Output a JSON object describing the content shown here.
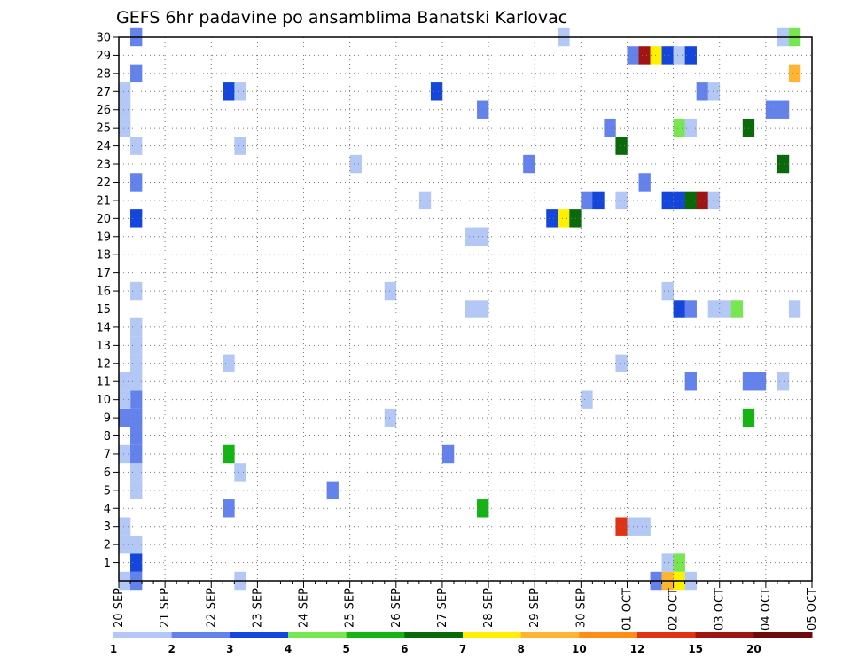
{
  "chart_data": {
    "type": "heatmap",
    "title": "GEFS 6hr padavine po ansamblima Banatski Karlovac",
    "xlabel": "",
    "ylabel": "",
    "x_tick_labels": [
      "20 SEP",
      "21 SEP",
      "22 SEP",
      "23 SEP",
      "24 SEP",
      "25 SEP",
      "26 SEP",
      "27 SEP",
      "28 SEP",
      "29 SEP",
      "30 SEP",
      "01 OCT",
      "02 OCT",
      "03 OCT",
      "04 OCT",
      "05 OCT"
    ],
    "y_tick_labels": [
      "1",
      "2",
      "3",
      "4",
      "5",
      "6",
      "7",
      "8",
      "9",
      "10",
      "11",
      "12",
      "13",
      "14",
      "15",
      "16",
      "17",
      "18",
      "19",
      "20",
      "21",
      "22",
      "23",
      "24",
      "25",
      "26",
      "27",
      "28",
      "29",
      "30"
    ],
    "x_unit": "6-hour step from 20 SEP",
    "xlim": [
      0,
      60
    ],
    "ylim": [
      0,
      30
    ],
    "grid": true,
    "colorbar": {
      "labels": [
        "1",
        "2",
        "3",
        "4",
        "5",
        "6",
        "7",
        "8",
        "10",
        "12",
        "15",
        "20"
      ],
      "colors": [
        "#b4c8f5",
        "#6482ec",
        "#1446dc",
        "#78e650",
        "#14b414",
        "#0a690a",
        "#fff000",
        "#ffb432",
        "#ff8c14",
        "#e13214",
        "#a01414",
        "#6e0a0a"
      ]
    },
    "cells": [
      {
        "x": 0,
        "y": 0,
        "v": 1.5
      },
      {
        "x": 1,
        "y": 0,
        "v": 2.5
      },
      {
        "x": 1,
        "y": 1,
        "v": 3.5
      },
      {
        "x": 1,
        "y": 2,
        "v": 1.5
      },
      {
        "x": 0,
        "y": 2,
        "v": 1.5
      },
      {
        "x": 0,
        "y": 3,
        "v": 1.5
      },
      {
        "x": 0,
        "y": 7,
        "v": 1.5
      },
      {
        "x": 1,
        "y": 5,
        "v": 1.5
      },
      {
        "x": 1,
        "y": 6,
        "v": 1.5
      },
      {
        "x": 1,
        "y": 7,
        "v": 2.5
      },
      {
        "x": 1,
        "y": 8,
        "v": 2.5
      },
      {
        "x": 1,
        "y": 9,
        "v": 2.5
      },
      {
        "x": 0,
        "y": 9,
        "v": 2.5
      },
      {
        "x": 1,
        "y": 10,
        "v": 2.5
      },
      {
        "x": 0,
        "y": 10,
        "v": 1.5
      },
      {
        "x": 0,
        "y": 11,
        "v": 1.5
      },
      {
        "x": 1,
        "y": 11,
        "v": 1.5
      },
      {
        "x": 1,
        "y": 12,
        "v": 1.5
      },
      {
        "x": 1,
        "y": 13,
        "v": 1.5
      },
      {
        "x": 1,
        "y": 14,
        "v": 1.5
      },
      {
        "x": 1,
        "y": 16,
        "v": 1.5
      },
      {
        "x": 1,
        "y": 20,
        "v": 3.5
      },
      {
        "x": 1,
        "y": 22,
        "v": 2.5
      },
      {
        "x": 1,
        "y": 24,
        "v": 1.5
      },
      {
        "x": 0,
        "y": 25,
        "v": 1.5
      },
      {
        "x": 0,
        "y": 26,
        "v": 1.5
      },
      {
        "x": 0,
        "y": 27,
        "v": 1.5
      },
      {
        "x": 1,
        "y": 28,
        "v": 2.5
      },
      {
        "x": 1,
        "y": 30,
        "v": 2.5
      },
      {
        "x": 9,
        "y": 4,
        "v": 2.5
      },
      {
        "x": 9,
        "y": 7,
        "v": 5.5
      },
      {
        "x": 9,
        "y": 12,
        "v": 1.5
      },
      {
        "x": 10,
        "y": 0,
        "v": 1.5
      },
      {
        "x": 10,
        "y": 6,
        "v": 1.5
      },
      {
        "x": 10,
        "y": 24,
        "v": 1.5
      },
      {
        "x": 9,
        "y": 27,
        "v": 3.5
      },
      {
        "x": 10,
        "y": 27,
        "v": 1.5
      },
      {
        "x": 18,
        "y": 5,
        "v": 2.5
      },
      {
        "x": 20,
        "y": 23,
        "v": 1.5
      },
      {
        "x": 23,
        "y": 9,
        "v": 1.5
      },
      {
        "x": 23,
        "y": 16,
        "v": 1.5
      },
      {
        "x": 26,
        "y": 21,
        "v": 1.5
      },
      {
        "x": 27,
        "y": 27,
        "v": 3.5
      },
      {
        "x": 28,
        "y": 7,
        "v": 2.5
      },
      {
        "x": 31,
        "y": 4,
        "v": 5.5
      },
      {
        "x": 31,
        "y": 26,
        "v": 2.5
      },
      {
        "x": 30,
        "y": 15,
        "v": 1.5
      },
      {
        "x": 31,
        "y": 15,
        "v": 1.5
      },
      {
        "x": 30,
        "y": 19,
        "v": 1.5
      },
      {
        "x": 31,
        "y": 19,
        "v": 1.5
      },
      {
        "x": 35,
        "y": 23,
        "v": 2.5
      },
      {
        "x": 37,
        "y": 20,
        "v": 3.5
      },
      {
        "x": 38,
        "y": 20,
        "v": 7.5
      },
      {
        "x": 39,
        "y": 20,
        "v": 6.5
      },
      {
        "x": 38,
        "y": 30,
        "v": 1.5
      },
      {
        "x": 40,
        "y": 10,
        "v": 1.5
      },
      {
        "x": 40,
        "y": 21,
        "v": 2.5
      },
      {
        "x": 41,
        "y": 21,
        "v": 3.5
      },
      {
        "x": 42,
        "y": 25,
        "v": 2.5
      },
      {
        "x": 43,
        "y": 3,
        "v": 13
      },
      {
        "x": 44,
        "y": 3,
        "v": 1.5
      },
      {
        "x": 45,
        "y": 3,
        "v": 1.5
      },
      {
        "x": 43,
        "y": 12,
        "v": 1.5
      },
      {
        "x": 43,
        "y": 21,
        "v": 1.5
      },
      {
        "x": 43,
        "y": 24,
        "v": 6.5
      },
      {
        "x": 44,
        "y": 29,
        "v": 2.5
      },
      {
        "x": 45,
        "y": 29,
        "v": 17
      },
      {
        "x": 46,
        "y": 29,
        "v": 7.5
      },
      {
        "x": 47,
        "y": 29,
        "v": 3.5
      },
      {
        "x": 48,
        "y": 29,
        "v": 1.5
      },
      {
        "x": 49,
        "y": 29,
        "v": 3.5
      },
      {
        "x": 45,
        "y": 22,
        "v": 2.5
      },
      {
        "x": 46,
        "y": 0,
        "v": 2.5
      },
      {
        "x": 47,
        "y": 0,
        "v": 9
      },
      {
        "x": 48,
        "y": 0,
        "v": 7.5
      },
      {
        "x": 49,
        "y": 0,
        "v": 1.5
      },
      {
        "x": 47,
        "y": 1,
        "v": 1.5
      },
      {
        "x": 48,
        "y": 1,
        "v": 4.5
      },
      {
        "x": 47,
        "y": 16,
        "v": 1.5
      },
      {
        "x": 48,
        "y": 15,
        "v": 3.5
      },
      {
        "x": 49,
        "y": 15,
        "v": 2.5
      },
      {
        "x": 49,
        "y": 11,
        "v": 2.5
      },
      {
        "x": 47,
        "y": 21,
        "v": 3.5
      },
      {
        "x": 48,
        "y": 21,
        "v": 3.5
      },
      {
        "x": 49,
        "y": 21,
        "v": 6.5
      },
      {
        "x": 50,
        "y": 21,
        "v": 17
      },
      {
        "x": 51,
        "y": 21,
        "v": 1.5
      },
      {
        "x": 48,
        "y": 25,
        "v": 4.5
      },
      {
        "x": 49,
        "y": 25,
        "v": 1.5
      },
      {
        "x": 50,
        "y": 27,
        "v": 2.5
      },
      {
        "x": 51,
        "y": 27,
        "v": 1.5
      },
      {
        "x": 51,
        "y": 15,
        "v": 1.5
      },
      {
        "x": 52,
        "y": 15,
        "v": 1.5
      },
      {
        "x": 53,
        "y": 15,
        "v": 4.5
      },
      {
        "x": 54,
        "y": 9,
        "v": 5.5
      },
      {
        "x": 54,
        "y": 11,
        "v": 2.5
      },
      {
        "x": 55,
        "y": 11,
        "v": 2.5
      },
      {
        "x": 54,
        "y": 25,
        "v": 6.5
      },
      {
        "x": 57,
        "y": 11,
        "v": 1.5
      },
      {
        "x": 57,
        "y": 23,
        "v": 6.5
      },
      {
        "x": 57,
        "y": 26,
        "v": 2.5
      },
      {
        "x": 56,
        "y": 26,
        "v": 2.5
      },
      {
        "x": 58,
        "y": 15,
        "v": 1.5
      },
      {
        "x": 58,
        "y": 28,
        "v": 9
      },
      {
        "x": 57,
        "y": 30,
        "v": 1.5
      },
      {
        "x": 58,
        "y": 30,
        "v": 4.5
      }
    ]
  }
}
